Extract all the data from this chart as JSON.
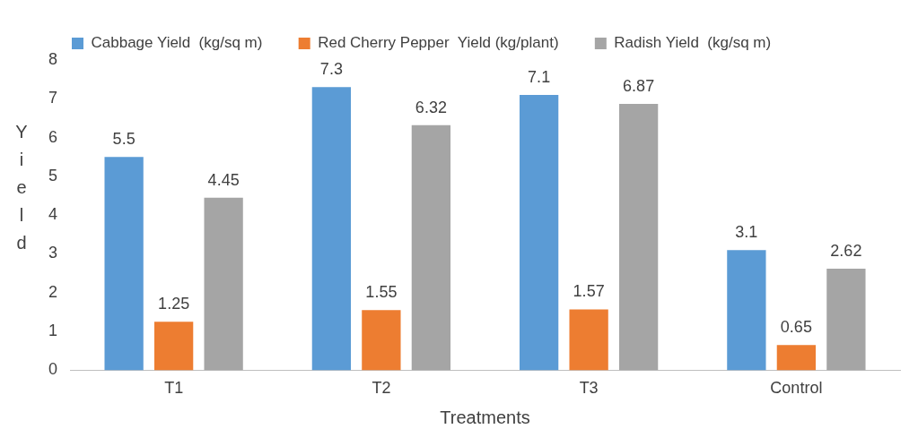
{
  "chart_data": {
    "type": "bar",
    "xlabel": "Treatments",
    "ylabel": "Yield",
    "categories": [
      "T1",
      "T2",
      "T3",
      "Control"
    ],
    "series": [
      {
        "name": "Cabbage Yield  (kg/sq m)",
        "color": "#5b9bd5",
        "values": [
          5.5,
          7.3,
          7.1,
          3.1
        ]
      },
      {
        "name": "Red Cherry Pepper  Yield (kg/plant)",
        "color": "#ed7d31",
        "values": [
          1.25,
          1.55,
          1.57,
          0.65
        ]
      },
      {
        "name": "Radish Yield  (kg/sq m)",
        "color": "#a5a5a5",
        "values": [
          4.45,
          6.32,
          6.87,
          2.62
        ]
      }
    ],
    "ylim": [
      0,
      8
    ],
    "yticks": [
      0,
      1,
      2,
      3,
      4,
      5,
      6,
      7,
      8
    ],
    "grid": false,
    "legend": "top left",
    "data_labels": true
  }
}
